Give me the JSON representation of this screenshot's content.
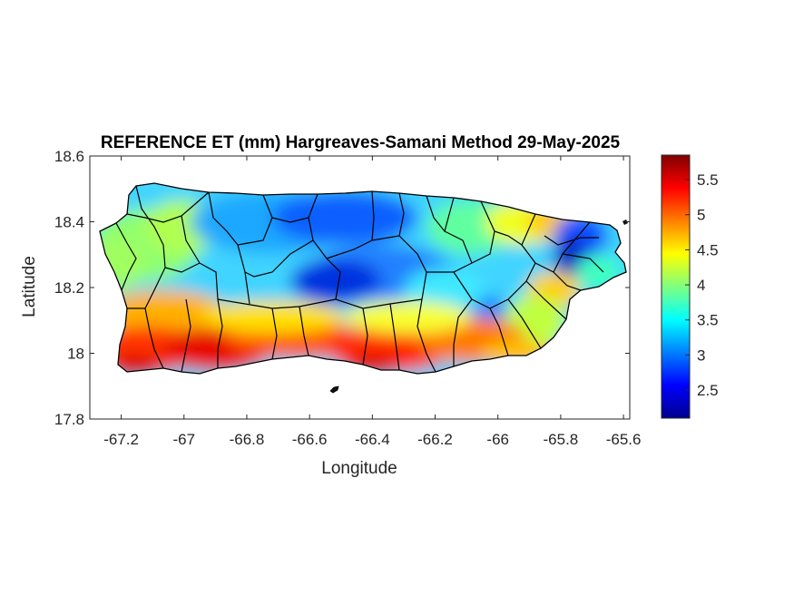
{
  "chart_data": {
    "type": "heatmap",
    "title": "REFERENCE ET (mm) Hargreaves-Samani Method  29-May-2025",
    "xlabel": "Longitude",
    "ylabel": "Latitude",
    "xlim": [
      -67.3,
      -65.58
    ],
    "ylim": [
      17.8,
      18.6
    ],
    "xticks": [
      -67.2,
      -67,
      -66.8,
      -66.6,
      -66.4,
      -66.2,
      -66,
      -65.8,
      -65.6
    ],
    "xtick_labels": [
      "-67.2",
      "-67",
      "-66.8",
      "-66.6",
      "-66.4",
      "-66.2",
      "-66",
      "-65.8",
      "-65.6"
    ],
    "yticks": [
      17.8,
      18,
      18.2,
      18.4,
      18.6
    ],
    "ytick_labels": [
      "17.8",
      "18",
      "18.2",
      "18.4",
      "18.6"
    ],
    "colormap": "jet",
    "colorbar": {
      "range": [
        2.1,
        5.85
      ],
      "ticks": [
        2.5,
        3,
        3.5,
        4,
        4.5,
        5,
        5.5
      ],
      "tick_labels": [
        "2.5",
        "3",
        "3.5",
        "4",
        "4.5",
        "5",
        "5.5"
      ],
      "placement": "right"
    },
    "grid": false,
    "field_description_values": {
      "north_central_interior": 3.0,
      "central_mountains_min": 2.6,
      "west": 4.0,
      "northeast_coast": 4.6,
      "east_tip_min": 2.3,
      "south_coast": 5.4,
      "southwest_coast_max": 5.8
    }
  }
}
